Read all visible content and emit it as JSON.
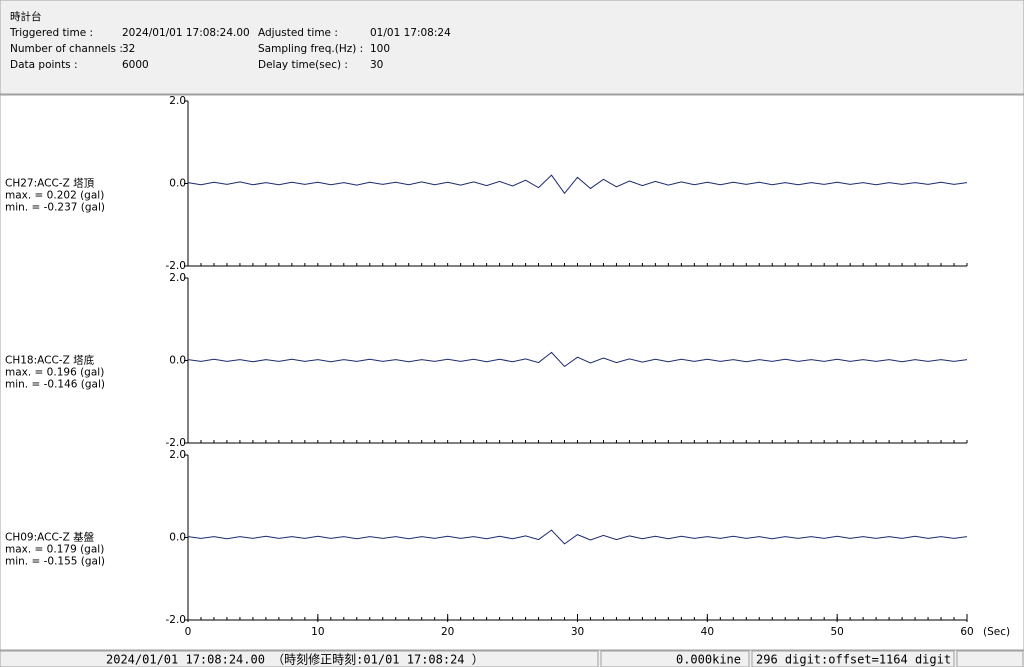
{
  "header": {
    "title": "時計台",
    "fields": [
      {
        "label": "Triggered time :",
        "value": "2024/01/01 17:08:24.00"
      },
      {
        "label": "Number of channels :",
        "value": "32"
      },
      {
        "label": "Data points :",
        "value": "6000"
      },
      {
        "label": "Adjusted time :",
        "value": "01/01 17:08:24"
      },
      {
        "label": "Sampling freq.(Hz) :",
        "value": "100"
      },
      {
        "label": "Delay time(sec) :",
        "value": "30"
      }
    ]
  },
  "minor_xticks": [
    0,
    1,
    2,
    3,
    4,
    5,
    6,
    7,
    8,
    9,
    10,
    11,
    12,
    13,
    14,
    15,
    16,
    17,
    18,
    19,
    20,
    21,
    22,
    23,
    24,
    25,
    26,
    27,
    28,
    29,
    30,
    31,
    32,
    33,
    34,
    35,
    36,
    37,
    38,
    39,
    40,
    41,
    42,
    43,
    44,
    45,
    46,
    47,
    48,
    49,
    50,
    51,
    52,
    53,
    54,
    55,
    56,
    57,
    58,
    59,
    60
  ],
  "chart_data": [
    {
      "type": "line",
      "channel": "CH27:ACC-Z 塔頂",
      "max_label": "max. = 0.202 (gal)",
      "min_label": "min. = -0.237 (gal)",
      "xlim": [
        0,
        60
      ],
      "ylim": [
        -2,
        2
      ],
      "yticks": [
        {
          "value": 2,
          "label": "2.0"
        },
        {
          "value": 0,
          "label": "0.0"
        },
        {
          "value": -2,
          "label": "-2.0"
        }
      ],
      "x": [
        0,
        1,
        2,
        3,
        4,
        5,
        6,
        7,
        8,
        9,
        10,
        11,
        12,
        13,
        14,
        15,
        16,
        17,
        18,
        19,
        20,
        21,
        22,
        23,
        24,
        25,
        26,
        27,
        28,
        29,
        30,
        31,
        32,
        33,
        34,
        35,
        36,
        37,
        38,
        39,
        40,
        41,
        42,
        43,
        44,
        45,
        46,
        47,
        48,
        49,
        50,
        51,
        52,
        53,
        54,
        55,
        56,
        57,
        58,
        59,
        60
      ],
      "series": [
        {
          "color": "#1c2a6e",
          "values": [
            0.02,
            -0.03,
            0.03,
            -0.02,
            0.04,
            -0.03,
            0.02,
            -0.03,
            0.03,
            -0.02,
            0.03,
            -0.03,
            0.02,
            -0.04,
            0.03,
            -0.02,
            0.03,
            -0.03,
            0.04,
            -0.03,
            0.03,
            -0.04,
            0.04,
            -0.05,
            0.05,
            -0.06,
            0.08,
            -0.1,
            0.202,
            -0.237,
            0.15,
            -0.12,
            0.1,
            -0.08,
            0.06,
            -0.05,
            0.05,
            -0.04,
            0.04,
            -0.03,
            0.03,
            -0.03,
            0.03,
            -0.02,
            0.03,
            -0.03,
            0.02,
            -0.03,
            0.02,
            -0.02,
            0.03,
            -0.02,
            0.02,
            -0.03,
            0.02,
            -0.02,
            0.02,
            -0.02,
            0.03,
            -0.02,
            0.02
          ]
        }
      ]
    },
    {
      "type": "line",
      "channel": "CH18:ACC-Z 塔底",
      "max_label": "max. = 0.196 (gal)",
      "min_label": "min. = -0.146 (gal)",
      "xlim": [
        0,
        60
      ],
      "ylim": [
        -2,
        2
      ],
      "yticks": [
        {
          "value": 2,
          "label": "2.0"
        },
        {
          "value": 0,
          "label": "0.0"
        },
        {
          "value": -2,
          "label": "-2.0"
        }
      ],
      "x": [
        0,
        1,
        2,
        3,
        4,
        5,
        6,
        7,
        8,
        9,
        10,
        11,
        12,
        13,
        14,
        15,
        16,
        17,
        18,
        19,
        20,
        21,
        22,
        23,
        24,
        25,
        26,
        27,
        28,
        29,
        30,
        31,
        32,
        33,
        34,
        35,
        36,
        37,
        38,
        39,
        40,
        41,
        42,
        43,
        44,
        45,
        46,
        47,
        48,
        49,
        50,
        51,
        52,
        53,
        54,
        55,
        56,
        57,
        58,
        59,
        60
      ],
      "series": [
        {
          "color": "#1c2a6e",
          "values": [
            0.02,
            -0.02,
            0.03,
            -0.02,
            0.02,
            -0.03,
            0.02,
            -0.02,
            0.03,
            -0.02,
            0.02,
            -0.03,
            0.02,
            -0.02,
            0.03,
            -0.02,
            0.02,
            -0.03,
            0.02,
            -0.02,
            0.03,
            -0.02,
            0.03,
            -0.03,
            0.03,
            -0.03,
            0.04,
            -0.05,
            0.196,
            -0.146,
            0.08,
            -0.06,
            0.06,
            -0.05,
            0.04,
            -0.04,
            0.03,
            -0.03,
            0.03,
            -0.02,
            0.03,
            -0.02,
            0.02,
            -0.03,
            0.02,
            -0.02,
            0.03,
            -0.02,
            0.02,
            -0.02,
            0.03,
            -0.02,
            0.02,
            -0.02,
            0.02,
            -0.03,
            0.02,
            -0.02,
            0.02,
            -0.02,
            0.02
          ]
        }
      ]
    },
    {
      "type": "line",
      "channel": "CH09:ACC-Z 基盤",
      "max_label": "max. = 0.179 (gal)",
      "min_label": "min. = -0.155 (gal)",
      "xlim": [
        0,
        60
      ],
      "ylim": [
        -2,
        2
      ],
      "yticks": [
        {
          "value": 2,
          "label": "2.0"
        },
        {
          "value": 0,
          "label": "0.0"
        },
        {
          "value": -2,
          "label": "-2.0"
        }
      ],
      "xticks": [
        0,
        10,
        20,
        30,
        40,
        50,
        60
      ],
      "xlabel": "(Sec)",
      "x": [
        0,
        1,
        2,
        3,
        4,
        5,
        6,
        7,
        8,
        9,
        10,
        11,
        12,
        13,
        14,
        15,
        16,
        17,
        18,
        19,
        20,
        21,
        22,
        23,
        24,
        25,
        26,
        27,
        28,
        29,
        30,
        31,
        32,
        33,
        34,
        35,
        36,
        37,
        38,
        39,
        40,
        41,
        42,
        43,
        44,
        45,
        46,
        47,
        48,
        49,
        50,
        51,
        52,
        53,
        54,
        55,
        56,
        57,
        58,
        59,
        60
      ],
      "series": [
        {
          "color": "#1c2a6e",
          "values": [
            0.02,
            -0.02,
            0.02,
            -0.03,
            0.02,
            -0.02,
            0.03,
            -0.02,
            0.02,
            -0.02,
            0.03,
            -0.02,
            0.02,
            -0.03,
            0.02,
            -0.02,
            0.02,
            -0.03,
            0.02,
            -0.02,
            0.03,
            -0.02,
            0.02,
            -0.03,
            0.03,
            -0.03,
            0.04,
            -0.05,
            0.179,
            -0.155,
            0.07,
            -0.06,
            0.05,
            -0.05,
            0.04,
            -0.03,
            0.03,
            -0.03,
            0.03,
            -0.02,
            0.02,
            -0.02,
            0.03,
            -0.02,
            0.02,
            -0.03,
            0.02,
            -0.02,
            0.02,
            -0.02,
            0.03,
            -0.02,
            0.02,
            -0.02,
            0.02,
            -0.02,
            0.03,
            -0.02,
            0.02,
            -0.02,
            0.02
          ]
        }
      ]
    }
  ],
  "status": {
    "time": "2024/01/01 17:08:24.00 （時刻修正時刻:01/01 17:08:24 ）",
    "kine": "0.000kine",
    "digit": "296 digit:offset=1164 digit"
  }
}
